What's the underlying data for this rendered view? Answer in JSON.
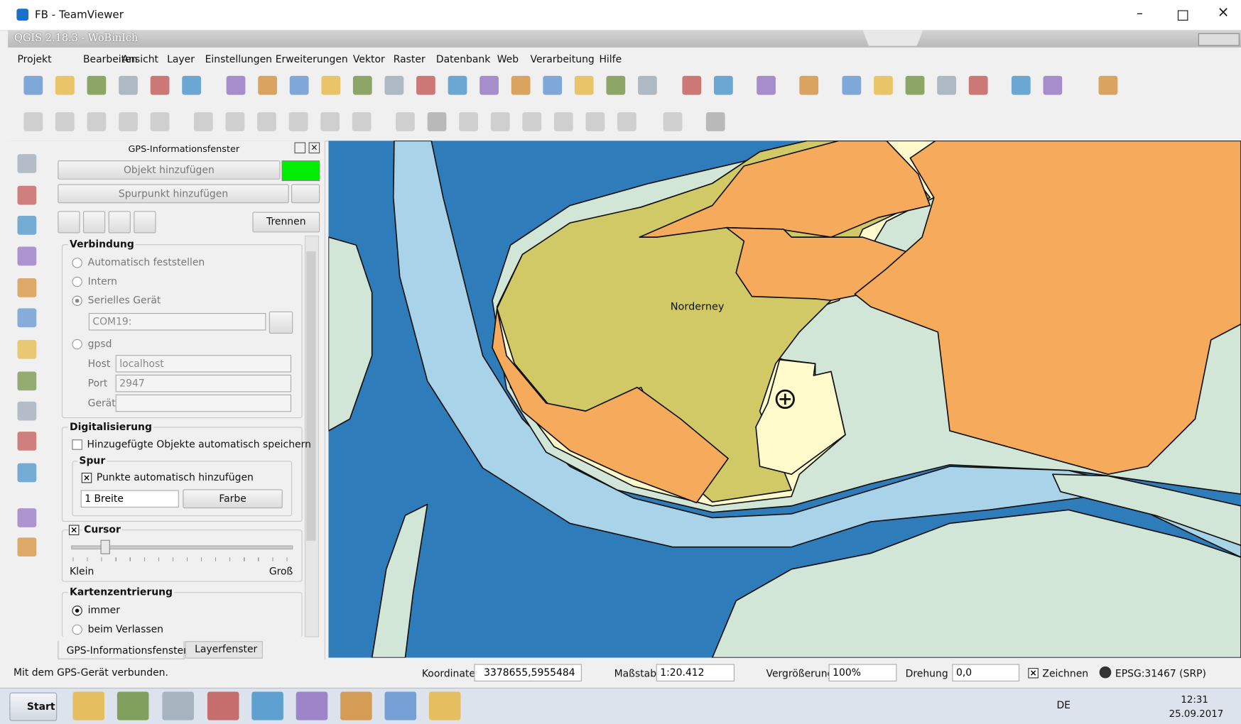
{
  "window": {
    "title": "FB - TeamViewer"
  },
  "app": {
    "title": "QGIS 2.18.3 - WoBinIch"
  },
  "menu": [
    "Projekt",
    "Bearbeiten",
    "Ansicht",
    "Layer",
    "Einstellungen",
    "Erweiterungen",
    "Vektor",
    "Raster",
    "Datenbank",
    "Web",
    "Verarbeitung",
    "Hilfe"
  ],
  "panel": {
    "title": "GPS-Informationsfenster",
    "buttons": {
      "add_object": "Objekt hinzufügen",
      "add_track_point": "Spurpunkt hinzufügen",
      "disconnect": "Trennen"
    },
    "connection": {
      "title": "Verbindung",
      "options": [
        "Automatisch feststellen",
        "Intern",
        "Serielles Gerät"
      ],
      "port_combo": "COM19:",
      "gpsd": "gpsd",
      "host_label": "Host",
      "host": "localhost",
      "port_label": "Port",
      "port": "2947",
      "device_label": "Gerät"
    },
    "digitizing": {
      "title": "Digitalisierung",
      "autosave": "Hinzugefügte Objekte automatisch speichern",
      "track": {
        "title": "Spur",
        "auto_add": "Punkte automatisch hinzufügen",
        "width": "1 Breite",
        "color": "Farbe"
      }
    },
    "cursor": {
      "title": "Cursor",
      "small": "Klein",
      "large": "Groß"
    },
    "centering": {
      "title": "Kartenzentrierung",
      "options": [
        "immer",
        "beim Verlassen"
      ]
    },
    "tabs": [
      "GPS-Informationsfenster",
      "Layerfenster"
    ]
  },
  "map": {
    "label": "Norderney"
  },
  "status": {
    "message": "Mit dem GPS-Gerät verbunden.",
    "coordinate_label": "Koordinate",
    "coordinate": "3378655,5955484",
    "scale_label": "Maßstab",
    "scale": "1:20.412",
    "magnifier_label": "Vergrößerung",
    "magnifier": "100%",
    "rotation_label": "Drehung",
    "rotation": "0,0",
    "render": "Zeichnen",
    "crs": "EPSG:31467 (SRP)"
  },
  "taskbar": {
    "start": "Start",
    "language": "DE",
    "time": "12:31",
    "date": "25.09.2017"
  }
}
